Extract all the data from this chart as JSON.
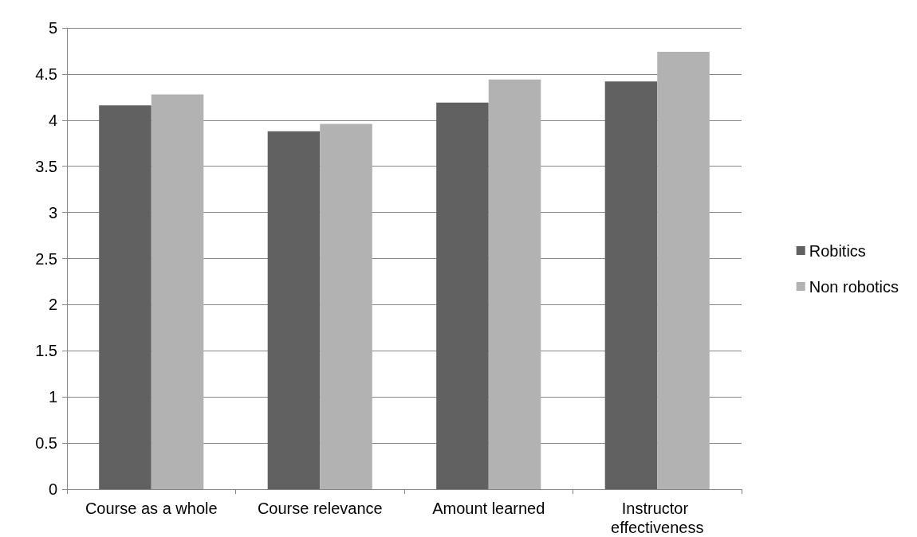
{
  "chart_data": {
    "type": "bar",
    "categories": [
      "Course as a whole",
      "Course relevance",
      "Amount learned",
      "Instructor effectiveness"
    ],
    "series": [
      {
        "name": "Robitics",
        "color": "#616161",
        "values": [
          4.16,
          3.88,
          4.19,
          4.42
        ]
      },
      {
        "name": "Non robotics",
        "color": "#b2b2b2",
        "values": [
          4.28,
          3.96,
          4.44,
          4.74
        ]
      }
    ],
    "ylim": [
      0,
      5
    ],
    "yticks": [
      0,
      0.5,
      1,
      1.5,
      2,
      2.5,
      3,
      3.5,
      4,
      4.5,
      5
    ],
    "grid": "y",
    "legend": "right"
  }
}
